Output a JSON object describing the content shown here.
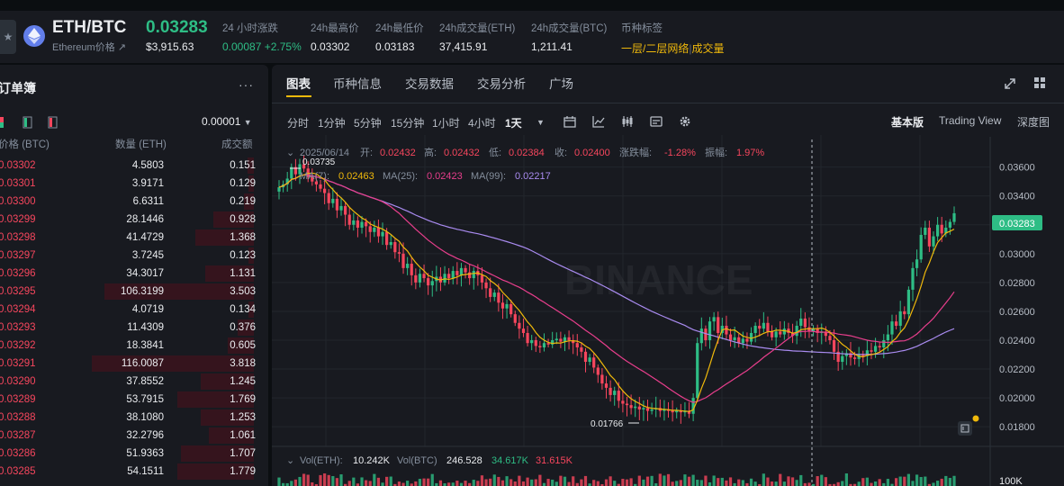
{
  "ticker": {
    "symbol": "ETH/BTC",
    "subname": "Ethereum价格 ↗",
    "last_price": "0.03283",
    "last_usd": "$3,915.63",
    "stats": [
      {
        "label": "24 小时涨跌",
        "value": "0.00087 +2.75%"
      },
      {
        "label": "24h最高价",
        "value": "0.03302"
      },
      {
        "label": "24h最低价",
        "value": "0.03183"
      },
      {
        "label": "24h成交量(ETH)",
        "value": "37,415.91"
      },
      {
        "label": "24h成交量(BTC)",
        "value": "1,211.41"
      },
      {
        "label": "币种标签",
        "value_a": "一层/二层网络",
        "value_b": "成交量"
      }
    ]
  },
  "orderbook": {
    "title": "订单簿",
    "more": "···",
    "precision": "0.00001",
    "headers": {
      "price": "价格 (BTC)",
      "qty": "数量 (ETH)",
      "total": "成交额"
    },
    "rows": [
      {
        "price": "0.03302",
        "qty": "4.5803",
        "total": "0.151",
        "depth": 0.04
      },
      {
        "price": "0.03301",
        "qty": "3.9171",
        "total": "0.129",
        "depth": 0.035
      },
      {
        "price": "0.03300",
        "qty": "6.6311",
        "total": "0.219",
        "depth": 0.06
      },
      {
        "price": "0.03299",
        "qty": "28.1446",
        "total": "0.928",
        "depth": 0.25
      },
      {
        "price": "0.03298",
        "qty": "41.4729",
        "total": "1.368",
        "depth": 0.36
      },
      {
        "price": "0.03297",
        "qty": "3.7245",
        "total": "0.123",
        "depth": 0.032
      },
      {
        "price": "0.03296",
        "qty": "34.3017",
        "total": "1.131",
        "depth": 0.3
      },
      {
        "price": "0.03295",
        "qty": "106.3199",
        "total": "3.503",
        "depth": 0.92
      },
      {
        "price": "0.03294",
        "qty": "4.0719",
        "total": "0.134",
        "depth": 0.036
      },
      {
        "price": "0.03293",
        "qty": "11.4309",
        "total": "0.376",
        "depth": 0.1
      },
      {
        "price": "0.03292",
        "qty": "18.3841",
        "total": "0.605",
        "depth": 0.16
      },
      {
        "price": "0.03291",
        "qty": "116.0087",
        "total": "3.818",
        "depth": 1.0
      },
      {
        "price": "0.03290",
        "qty": "37.8552",
        "total": "1.245",
        "depth": 0.33
      },
      {
        "price": "0.03289",
        "qty": "53.7915",
        "total": "1.769",
        "depth": 0.47
      },
      {
        "price": "0.03288",
        "qty": "38.1080",
        "total": "1.253",
        "depth": 0.33
      },
      {
        "price": "0.03287",
        "qty": "32.2796",
        "total": "1.061",
        "depth": 0.28
      },
      {
        "price": "0.03286",
        "qty": "51.9363",
        "total": "1.707",
        "depth": 0.45
      },
      {
        "price": "0.03285",
        "qty": "54.1511",
        "total": "1.779",
        "depth": 0.47
      }
    ]
  },
  "chart_panel": {
    "tabs": [
      "图表",
      "币种信息",
      "交易数据",
      "交易分析",
      "广场"
    ],
    "active_tab": "图表",
    "timeframes": [
      "分时",
      "1分钟",
      "5分钟",
      "15分钟",
      "1小时",
      "4小时",
      "1天"
    ],
    "active_timeframe": "1天",
    "views": [
      "基本版",
      "Trading View",
      "深度图"
    ],
    "active_view": "基本版"
  },
  "chart_data": {
    "type": "candlestick",
    "ohlc_labels": {
      "date": "2025/06/14",
      "open_label": "开:",
      "open": "0.02432",
      "high_label": "高:",
      "high": "0.02432",
      "low_label": "低:",
      "low": "0.02384",
      "close_label": "收:",
      "close": "0.02400",
      "change_label": "涨跌幅:",
      "change": "-1.28%",
      "amp_label": "振幅:",
      "amp": "1.97%"
    },
    "ma_labels": [
      {
        "name": "MA(7):",
        "value": "0.02463",
        "color": "#f0b90b"
      },
      {
        "name": "MA(25):",
        "value": "0.02423",
        "color": "#e83e8c"
      },
      {
        "name": "MA(99):",
        "value": "0.02217",
        "color": "#a98bf0"
      }
    ],
    "y_ticks": [
      "0.03600",
      "0.03400",
      "0.03200",
      "0.03000",
      "0.02800",
      "0.02600",
      "0.02400",
      "0.02200",
      "0.02000",
      "0.01800"
    ],
    "ylim": [
      0.0172,
      0.0376
    ],
    "current_price": "0.03283",
    "high_marker": "0.03735",
    "low_marker": "0.01766",
    "watermark": "BINANCE",
    "volume": {
      "label_eth": "Vol(ETH):",
      "value_eth": "10.242K",
      "label_btc": "Vol(BTC)",
      "value_btc": "246.528",
      "ma1": "34.617K",
      "ma2": "31.615K",
      "y_tick": "100K"
    },
    "closes": [
      0.0346,
      0.0348,
      0.0352,
      0.036,
      0.0355,
      0.0362,
      0.0359,
      0.0353,
      0.035,
      0.0348,
      0.0345,
      0.0342,
      0.0335,
      0.0338,
      0.033,
      0.0333,
      0.0327,
      0.032,
      0.0323,
      0.0318,
      0.0322,
      0.0319,
      0.0315,
      0.0318,
      0.0312,
      0.0315,
      0.0306,
      0.0308,
      0.0301,
      0.03,
      0.029,
      0.0293,
      0.0285,
      0.028,
      0.0286,
      0.0283,
      0.0278,
      0.0281,
      0.0284,
      0.028,
      0.0286,
      0.0283,
      0.0288,
      0.0285,
      0.029,
      0.0287,
      0.0283,
      0.0288,
      0.0285,
      0.028,
      0.0276,
      0.027,
      0.0273,
      0.0266,
      0.0262,
      0.0265,
      0.0258,
      0.0252,
      0.0248,
      0.0245,
      0.0238,
      0.024,
      0.0236,
      0.0235,
      0.0238,
      0.0237,
      0.024,
      0.0241,
      0.0239,
      0.0242,
      0.024,
      0.0238,
      0.0235,
      0.0232,
      0.0225,
      0.0228,
      0.0221,
      0.0216,
      0.021,
      0.0207,
      0.0202,
      0.0205,
      0.0198,
      0.0196,
      0.0195,
      0.0193,
      0.0194,
      0.0192,
      0.0193,
      0.0191,
      0.0192,
      0.0193,
      0.0191,
      0.0192,
      0.0191,
      0.019,
      0.0191,
      0.019,
      0.0191,
      0.0189,
      0.02,
      0.0238,
      0.0248,
      0.024,
      0.0253,
      0.0256,
      0.0245,
      0.025,
      0.0244,
      0.024,
      0.0242,
      0.0238,
      0.0241,
      0.0239,
      0.0245,
      0.025,
      0.0248,
      0.0252,
      0.0246,
      0.0242,
      0.0246,
      0.0244,
      0.0248,
      0.0245,
      0.0243,
      0.025,
      0.0255,
      0.0249,
      0.0246,
      0.0248,
      0.0245,
      0.0246,
      0.0243,
      0.024,
      0.0232,
      0.0225,
      0.0229,
      0.0231,
      0.0228,
      0.0227,
      0.023,
      0.0229,
      0.0233,
      0.0232,
      0.0236,
      0.0235,
      0.024,
      0.0244,
      0.0253,
      0.025,
      0.026,
      0.0258,
      0.0275,
      0.029,
      0.0296,
      0.0313,
      0.0318,
      0.0305,
      0.0312,
      0.032,
      0.0314,
      0.0318,
      0.0322,
      0.0328
    ]
  }
}
